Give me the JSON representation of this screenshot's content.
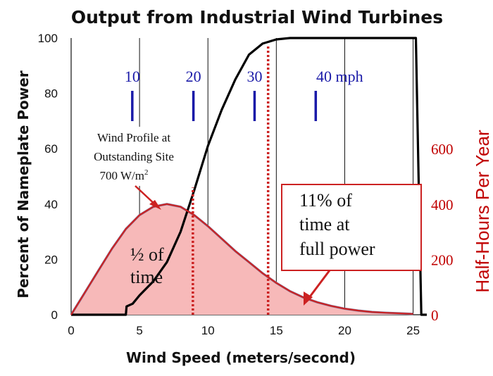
{
  "chart_data": {
    "type": "line",
    "title": "Output from Industrial Wind Turbines",
    "xlabel": "Wind Speed (meters/second)",
    "ylabel": "Percent of Nameplate Power",
    "y2label": "Half-Hours Per Year",
    "xlim": [
      0,
      26
    ],
    "ylim": [
      0,
      100
    ],
    "y2lim": [
      0,
      1000
    ],
    "xticks": [
      "0",
      "5",
      "10",
      "15",
      "20",
      "25"
    ],
    "yticks": [
      "0",
      "20",
      "40",
      "60",
      "80",
      "100"
    ],
    "y2ticks": [
      "0",
      "200",
      "400",
      "600"
    ],
    "grid": "vertical",
    "mph_markers": {
      "labels": [
        "10",
        "20",
        "30",
        "40 mph"
      ],
      "x": [
        4.47,
        8.94,
        13.41,
        17.88
      ],
      "color": "#1a1aa8"
    },
    "series": [
      {
        "axis": "left",
        "color": "#000000",
        "x": [
          0,
          4,
          4.05,
          4.5,
          5,
          6,
          7,
          8,
          9,
          10,
          11,
          12,
          13,
          14,
          15,
          16,
          17,
          18,
          19,
          20,
          21,
          22,
          23,
          24,
          25,
          25.2,
          25.4,
          25.6,
          26
        ],
        "values": [
          0,
          0,
          3,
          4,
          7,
          12,
          19,
          30,
          45,
          61,
          74,
          85,
          94,
          98,
          99.5,
          100,
          100,
          100,
          100,
          100,
          100,
          100,
          100,
          100,
          100,
          100,
          50,
          0,
          0
        ]
      },
      {
        "axis": "right",
        "color": "#cc2222",
        "fill": "#f7b9b9",
        "x": [
          0,
          1,
          2,
          3,
          4,
          5,
          6,
          7,
          8,
          9,
          10,
          11,
          12,
          13,
          14,
          15,
          16,
          17,
          18,
          19,
          20,
          21,
          22,
          23,
          24,
          25
        ],
        "values": [
          0,
          80,
          160,
          240,
          310,
          360,
          390,
          400,
          390,
          360,
          320,
          275,
          230,
          190,
          150,
          115,
          85,
          62,
          45,
          32,
          22,
          15,
          10,
          7,
          5,
          3
        ]
      }
    ],
    "vlines": [
      {
        "x": 8.9,
        "ymax": 46,
        "color": "#cc2222"
      },
      {
        "x": 14.4,
        "ymax": 97,
        "color": "#cc2222"
      }
    ],
    "annotations": {
      "profile_line1": "Wind Profile at",
      "profile_line2": "Outstanding Site",
      "profile_line3": "700 W/m",
      "profile_sup": "2",
      "half_line1": "½ of",
      "half_line2": "time",
      "full_line1": "11% of",
      "full_line2": "time at",
      "full_line3": "full power"
    }
  }
}
